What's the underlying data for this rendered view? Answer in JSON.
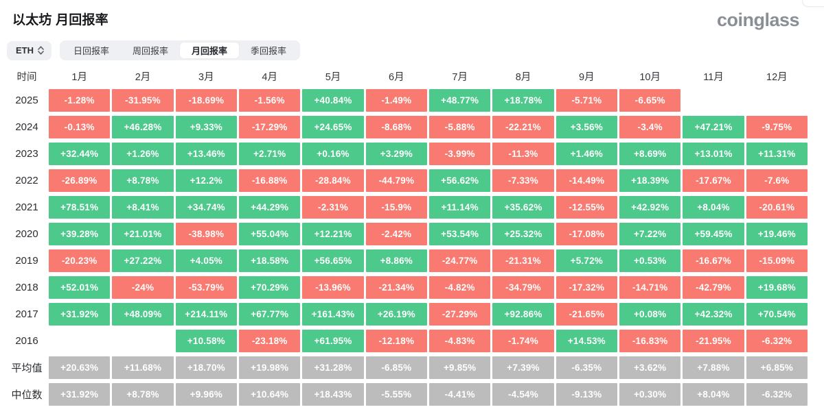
{
  "header": {
    "title": "以太坊 月回报率",
    "logo": "coinglass"
  },
  "controls": {
    "symbol": "ETH",
    "tabs": [
      {
        "id": "daily-return",
        "label": "日回报率",
        "active": false
      },
      {
        "id": "weekly-return",
        "label": "周回报率",
        "active": false
      },
      {
        "id": "monthly-return",
        "label": "月回报率",
        "active": true
      },
      {
        "id": "quarterly-return",
        "label": "季回报率",
        "active": false
      }
    ]
  },
  "colors": {
    "positive": "#4dc98c",
    "negative": "#f97a70",
    "summary": "#bcbcbc"
  },
  "table": {
    "corner_label": "时间",
    "month_headers": [
      "1月",
      "2月",
      "3月",
      "4月",
      "5月",
      "6月",
      "7月",
      "8月",
      "9月",
      "10月",
      "11月",
      "12月"
    ],
    "rows": [
      {
        "label": "2025",
        "type": "year",
        "values": [
          "-1.28%",
          "-31.95%",
          "-18.69%",
          "-1.56%",
          "+40.84%",
          "-1.49%",
          "+48.77%",
          "+18.78%",
          "-5.71%",
          "-6.65%",
          "",
          ""
        ]
      },
      {
        "label": "2024",
        "type": "year",
        "values": [
          "-0.13%",
          "+46.28%",
          "+9.33%",
          "-17.29%",
          "+24.65%",
          "-8.68%",
          "-5.88%",
          "-22.21%",
          "+3.56%",
          "-3.4%",
          "+47.21%",
          "-9.75%"
        ]
      },
      {
        "label": "2023",
        "type": "year",
        "values": [
          "+32.44%",
          "+1.26%",
          "+13.46%",
          "+2.71%",
          "+0.16%",
          "+3.29%",
          "-3.99%",
          "-11.3%",
          "+1.46%",
          "+8.69%",
          "+13.01%",
          "+11.31%"
        ]
      },
      {
        "label": "2022",
        "type": "year",
        "values": [
          "-26.89%",
          "+8.78%",
          "+12.2%",
          "-16.88%",
          "-28.84%",
          "-44.79%",
          "+56.62%",
          "-7.33%",
          "-14.49%",
          "+18.39%",
          "-17.67%",
          "-7.6%"
        ]
      },
      {
        "label": "2021",
        "type": "year",
        "values": [
          "+78.51%",
          "+8.41%",
          "+34.74%",
          "+44.29%",
          "-2.31%",
          "-15.9%",
          "+11.14%",
          "+35.62%",
          "-12.55%",
          "+42.92%",
          "+8.04%",
          "-20.61%"
        ]
      },
      {
        "label": "2020",
        "type": "year",
        "values": [
          "+39.28%",
          "+21.01%",
          "-38.98%",
          "+55.04%",
          "+12.21%",
          "-2.42%",
          "+53.54%",
          "+25.32%",
          "-17.08%",
          "+7.22%",
          "+59.45%",
          "+19.46%"
        ]
      },
      {
        "label": "2019",
        "type": "year",
        "values": [
          "-20.23%",
          "+27.22%",
          "+4.05%",
          "+18.58%",
          "+56.65%",
          "+8.86%",
          "-24.77%",
          "-21.31%",
          "+5.72%",
          "+0.53%",
          "-16.67%",
          "-15.09%"
        ]
      },
      {
        "label": "2018",
        "type": "year",
        "values": [
          "+52.01%",
          "-24%",
          "-53.79%",
          "+70.29%",
          "-13.96%",
          "-21.34%",
          "-4.82%",
          "-34.79%",
          "-17.32%",
          "-14.71%",
          "-42.79%",
          "+19.68%"
        ]
      },
      {
        "label": "2017",
        "type": "year",
        "values": [
          "+31.92%",
          "+48.09%",
          "+214.11%",
          "+67.77%",
          "+161.43%",
          "+26.19%",
          "-27.29%",
          "+92.86%",
          "-21.65%",
          "+0.08%",
          "+42.32%",
          "+70.54%"
        ]
      },
      {
        "label": "2016",
        "type": "year",
        "values": [
          "",
          "",
          "+10.58%",
          "-23.18%",
          "+61.95%",
          "-12.18%",
          "-4.83%",
          "-1.74%",
          "+14.53%",
          "-16.83%",
          "-21.95%",
          "-6.32%"
        ]
      },
      {
        "label": "平均值",
        "type": "summary",
        "values": [
          "+20.63%",
          "+11.68%",
          "+18.70%",
          "+19.98%",
          "+31.28%",
          "-6.85%",
          "+9.85%",
          "+7.39%",
          "-6.35%",
          "+3.62%",
          "+7.88%",
          "+6.85%"
        ]
      },
      {
        "label": "中位数",
        "type": "summary",
        "values": [
          "+31.92%",
          "+8.78%",
          "+9.96%",
          "+10.64%",
          "+18.43%",
          "-5.55%",
          "-4.41%",
          "-4.54%",
          "-9.13%",
          "+0.30%",
          "+8.04%",
          "-6.32%"
        ]
      }
    ]
  }
}
